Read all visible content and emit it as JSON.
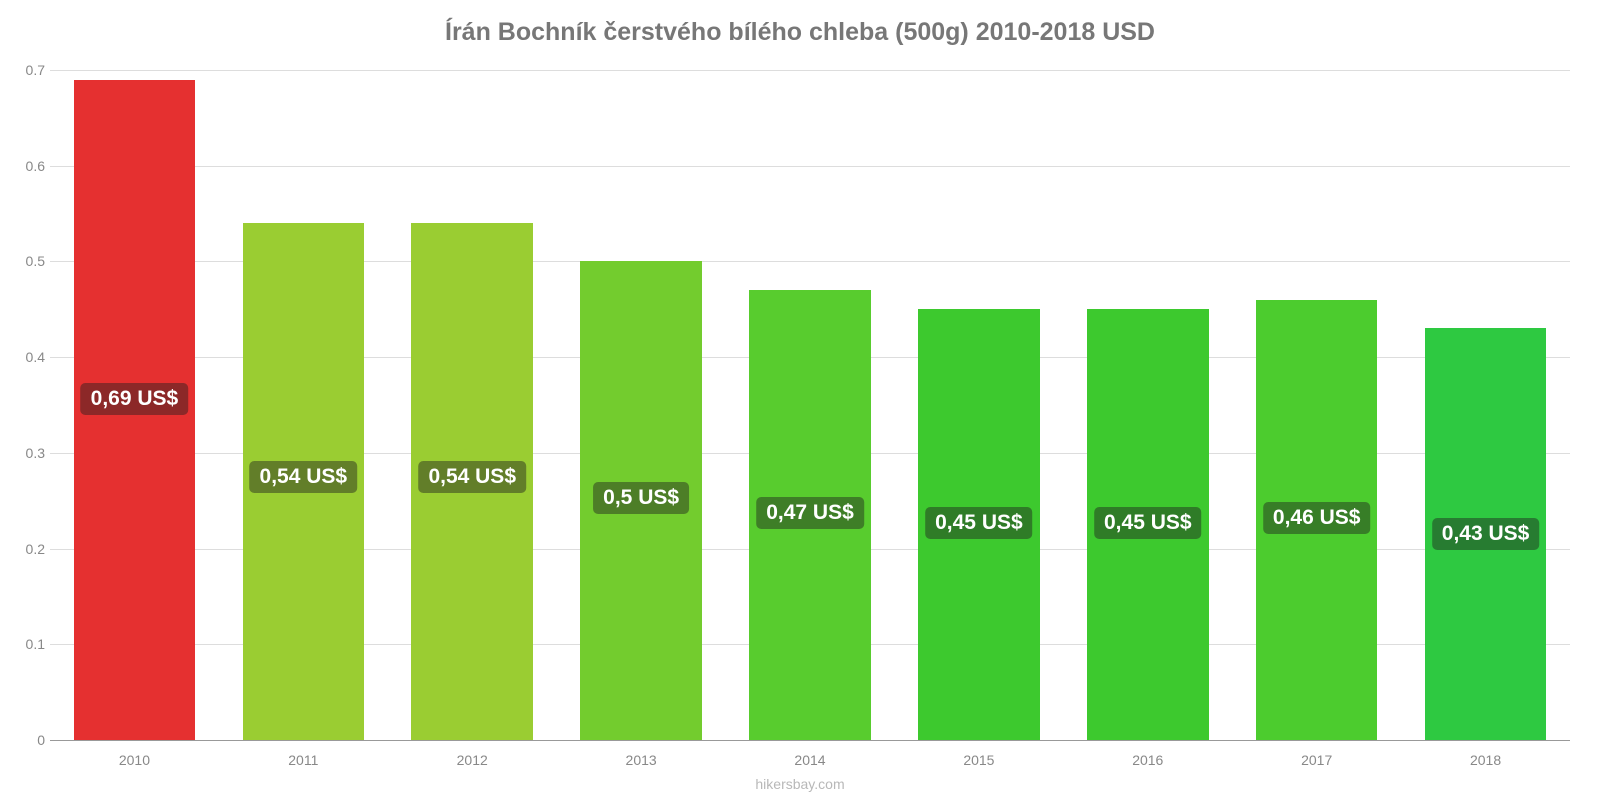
{
  "chart": {
    "type": "bar",
    "title": "Írán Bochník čerstvého bílého chleba (500g) 2010-2018 USD",
    "title_fontsize": 25,
    "title_color": "#777777",
    "background_color": "#ffffff",
    "attribution": "hikersbay.com",
    "attribution_color": "#b8b8b8",
    "axis_text_color": "#888888",
    "grid_color": "#dddddd",
    "bar_width_pct": 72,
    "label_fontsize": 21,
    "label_bg": "rgba(30,30,30,0.45)",
    "y": {
      "min": 0,
      "max": 0.7,
      "ticks": [
        0,
        0.1,
        0.2,
        0.3,
        0.4,
        0.5,
        0.6,
        0.7
      ],
      "tick_labels": [
        "0",
        "0.1",
        "0.2",
        "0.3",
        "0.4",
        "0.5",
        "0.6",
        "0.7"
      ]
    },
    "categories": [
      "2010",
      "2011",
      "2012",
      "2013",
      "2014",
      "2015",
      "2016",
      "2017",
      "2018"
    ],
    "values": [
      0.69,
      0.54,
      0.54,
      0.5,
      0.47,
      0.45,
      0.45,
      0.46,
      0.43
    ],
    "value_labels": [
      "0,69 US$",
      "0,54 US$",
      "0,54 US$",
      "0,5 US$",
      "0,47 US$",
      "0,45 US$",
      "0,45 US$",
      "0,46 US$",
      "0,43 US$"
    ],
    "bar_colors": [
      "#e53030",
      "#9acd32",
      "#9acd32",
      "#73cc2e",
      "#58cc2e",
      "#3dc92e",
      "#3dc92e",
      "#4ccc2e",
      "#2ec941"
    ],
    "label_position_pct": 46
  }
}
